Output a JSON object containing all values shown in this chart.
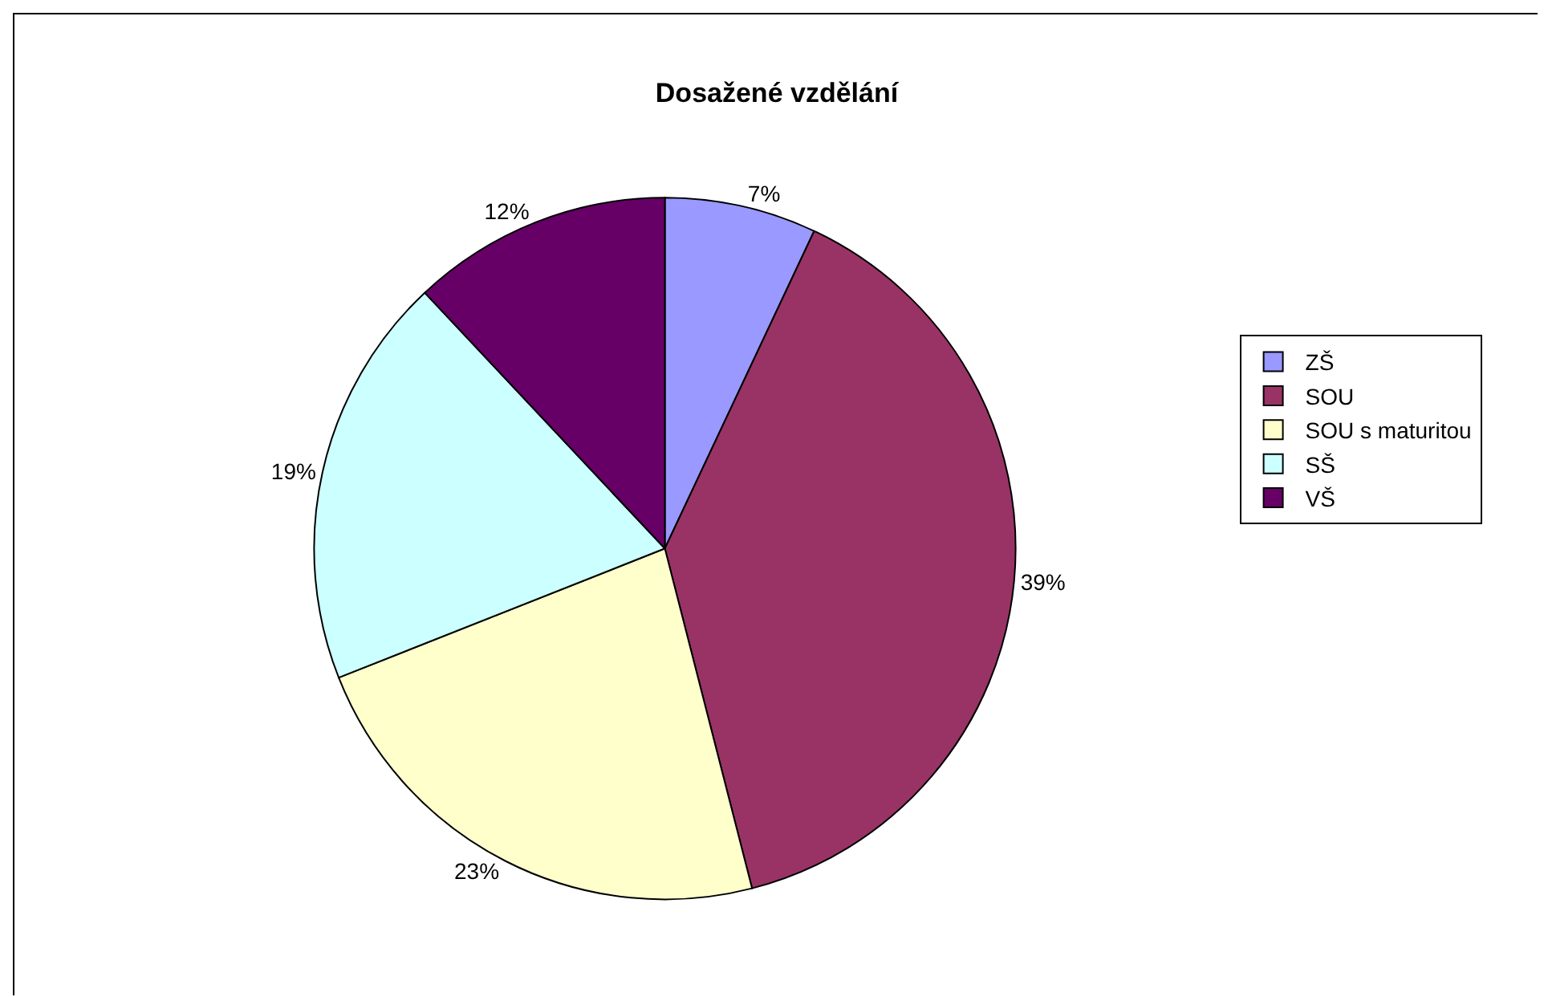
{
  "chart_data": {
    "type": "pie",
    "title": "Dosažené vzdělání",
    "categories": [
      "ZŠ",
      "SOU",
      "SOU s maturitou",
      "SŠ",
      "VŠ"
    ],
    "values": [
      7,
      39,
      23,
      19,
      12
    ],
    "value_labels": [
      "7%",
      "39%",
      "23%",
      "19%",
      "12%"
    ],
    "colors": [
      "#9999ff",
      "#993366",
      "#ffffcc",
      "#ccffff",
      "#660066"
    ],
    "legend": "right"
  }
}
